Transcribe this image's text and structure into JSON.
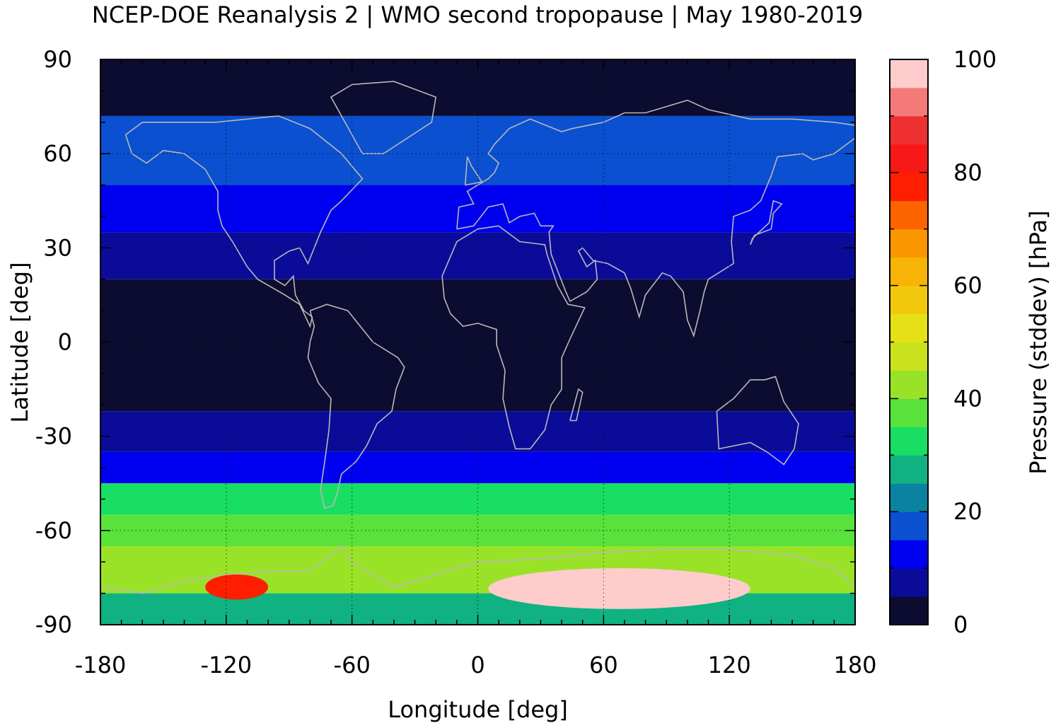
{
  "chart_data": {
    "type": "heatmap",
    "title": "NCEP-DOE Reanalysis 2 | WMO second tropopause | May 1980-2019",
    "xlabel": "Longitude [deg]",
    "ylabel": "Latitude [deg]",
    "colorbar_label": "Pressure (stddev) [hPa]",
    "xlim": [
      -180,
      180
    ],
    "ylim": [
      -90,
      90
    ],
    "xticks": [
      -180,
      -120,
      -60,
      0,
      60,
      120,
      180
    ],
    "yticks": [
      90,
      60,
      30,
      0,
      -30,
      -60,
      -90
    ],
    "colorbar_ticks": [
      0,
      20,
      40,
      60,
      80,
      100
    ],
    "colorbar_range": [
      0,
      100
    ],
    "grid": "dotted at 60 deg longitude and 30 deg latitude",
    "coastlines": "light gray outlines",
    "color_levels": [
      {
        "from": 0,
        "to": 5,
        "color": "#0c0c30"
      },
      {
        "from": 5,
        "to": 10,
        "color": "#0b0b9a"
      },
      {
        "from": 10,
        "to": 15,
        "color": "#0000f0"
      },
      {
        "from": 15,
        "to": 20,
        "color": "#0a50d0"
      },
      {
        "from": 20,
        "to": 25,
        "color": "#0a82a0"
      },
      {
        "from": 25,
        "to": 30,
        "color": "#10b282"
      },
      {
        "from": 30,
        "to": 35,
        "color": "#18de64"
      },
      {
        "from": 35,
        "to": 40,
        "color": "#5ae23c"
      },
      {
        "from": 40,
        "to": 45,
        "color": "#9ae228"
      },
      {
        "from": 45,
        "to": 50,
        "color": "#c8e21e"
      },
      {
        "from": 50,
        "to": 55,
        "color": "#e6e016"
      },
      {
        "from": 55,
        "to": 60,
        "color": "#f2c80c"
      },
      {
        "from": 60,
        "to": 65,
        "color": "#f8b406"
      },
      {
        "from": 65,
        "to": 70,
        "color": "#fa9600"
      },
      {
        "from": 70,
        "to": 75,
        "color": "#fc6400"
      },
      {
        "from": 75,
        "to": 80,
        "color": "#ff1e00"
      },
      {
        "from": 80,
        "to": 85,
        "color": "#f81818"
      },
      {
        "from": 85,
        "to": 90,
        "color": "#ee3030"
      },
      {
        "from": 90,
        "to": 95,
        "color": "#f47a7a"
      },
      {
        "from": 95,
        "to": 100,
        "color": "#ffcccc"
      }
    ],
    "regions": [
      {
        "lon": [
          -180,
          180
        ],
        "lat": [
          -22,
          20
        ],
        "value": 2
      },
      {
        "lon": [
          -180,
          180
        ],
        "lat": [
          20,
          35
        ],
        "value": 8
      },
      {
        "lon": [
          -180,
          180
        ],
        "lat": [
          35,
          50
        ],
        "value": 12
      },
      {
        "lon": [
          -180,
          180
        ],
        "lat": [
          50,
          72
        ],
        "value": 17
      },
      {
        "lon": [
          -180,
          180
        ],
        "lat": [
          72,
          90
        ],
        "value": 2
      },
      {
        "lon": [
          -180,
          180
        ],
        "lat": [
          -35,
          -22
        ],
        "value": 8
      },
      {
        "lon": [
          -180,
          180
        ],
        "lat": [
          -45,
          -35
        ],
        "value": 14
      },
      {
        "lon": [
          -180,
          180
        ],
        "lat": [
          -55,
          -45
        ],
        "value": 32
      },
      {
        "lon": [
          -180,
          180
        ],
        "lat": [
          -65,
          -55
        ],
        "value": 36
      },
      {
        "lon": [
          -180,
          180
        ],
        "lat": [
          -80,
          -65
        ],
        "value": 42
      },
      {
        "lon": [
          -180,
          180
        ],
        "lat": [
          -90,
          -80
        ],
        "value": 28
      },
      {
        "lon": [
          -130,
          -100
        ],
        "lat": [
          -82,
          -74
        ],
        "value": 78
      },
      {
        "lon": [
          5,
          130
        ],
        "lat": [
          -85,
          -72
        ],
        "value": 97
      }
    ]
  }
}
